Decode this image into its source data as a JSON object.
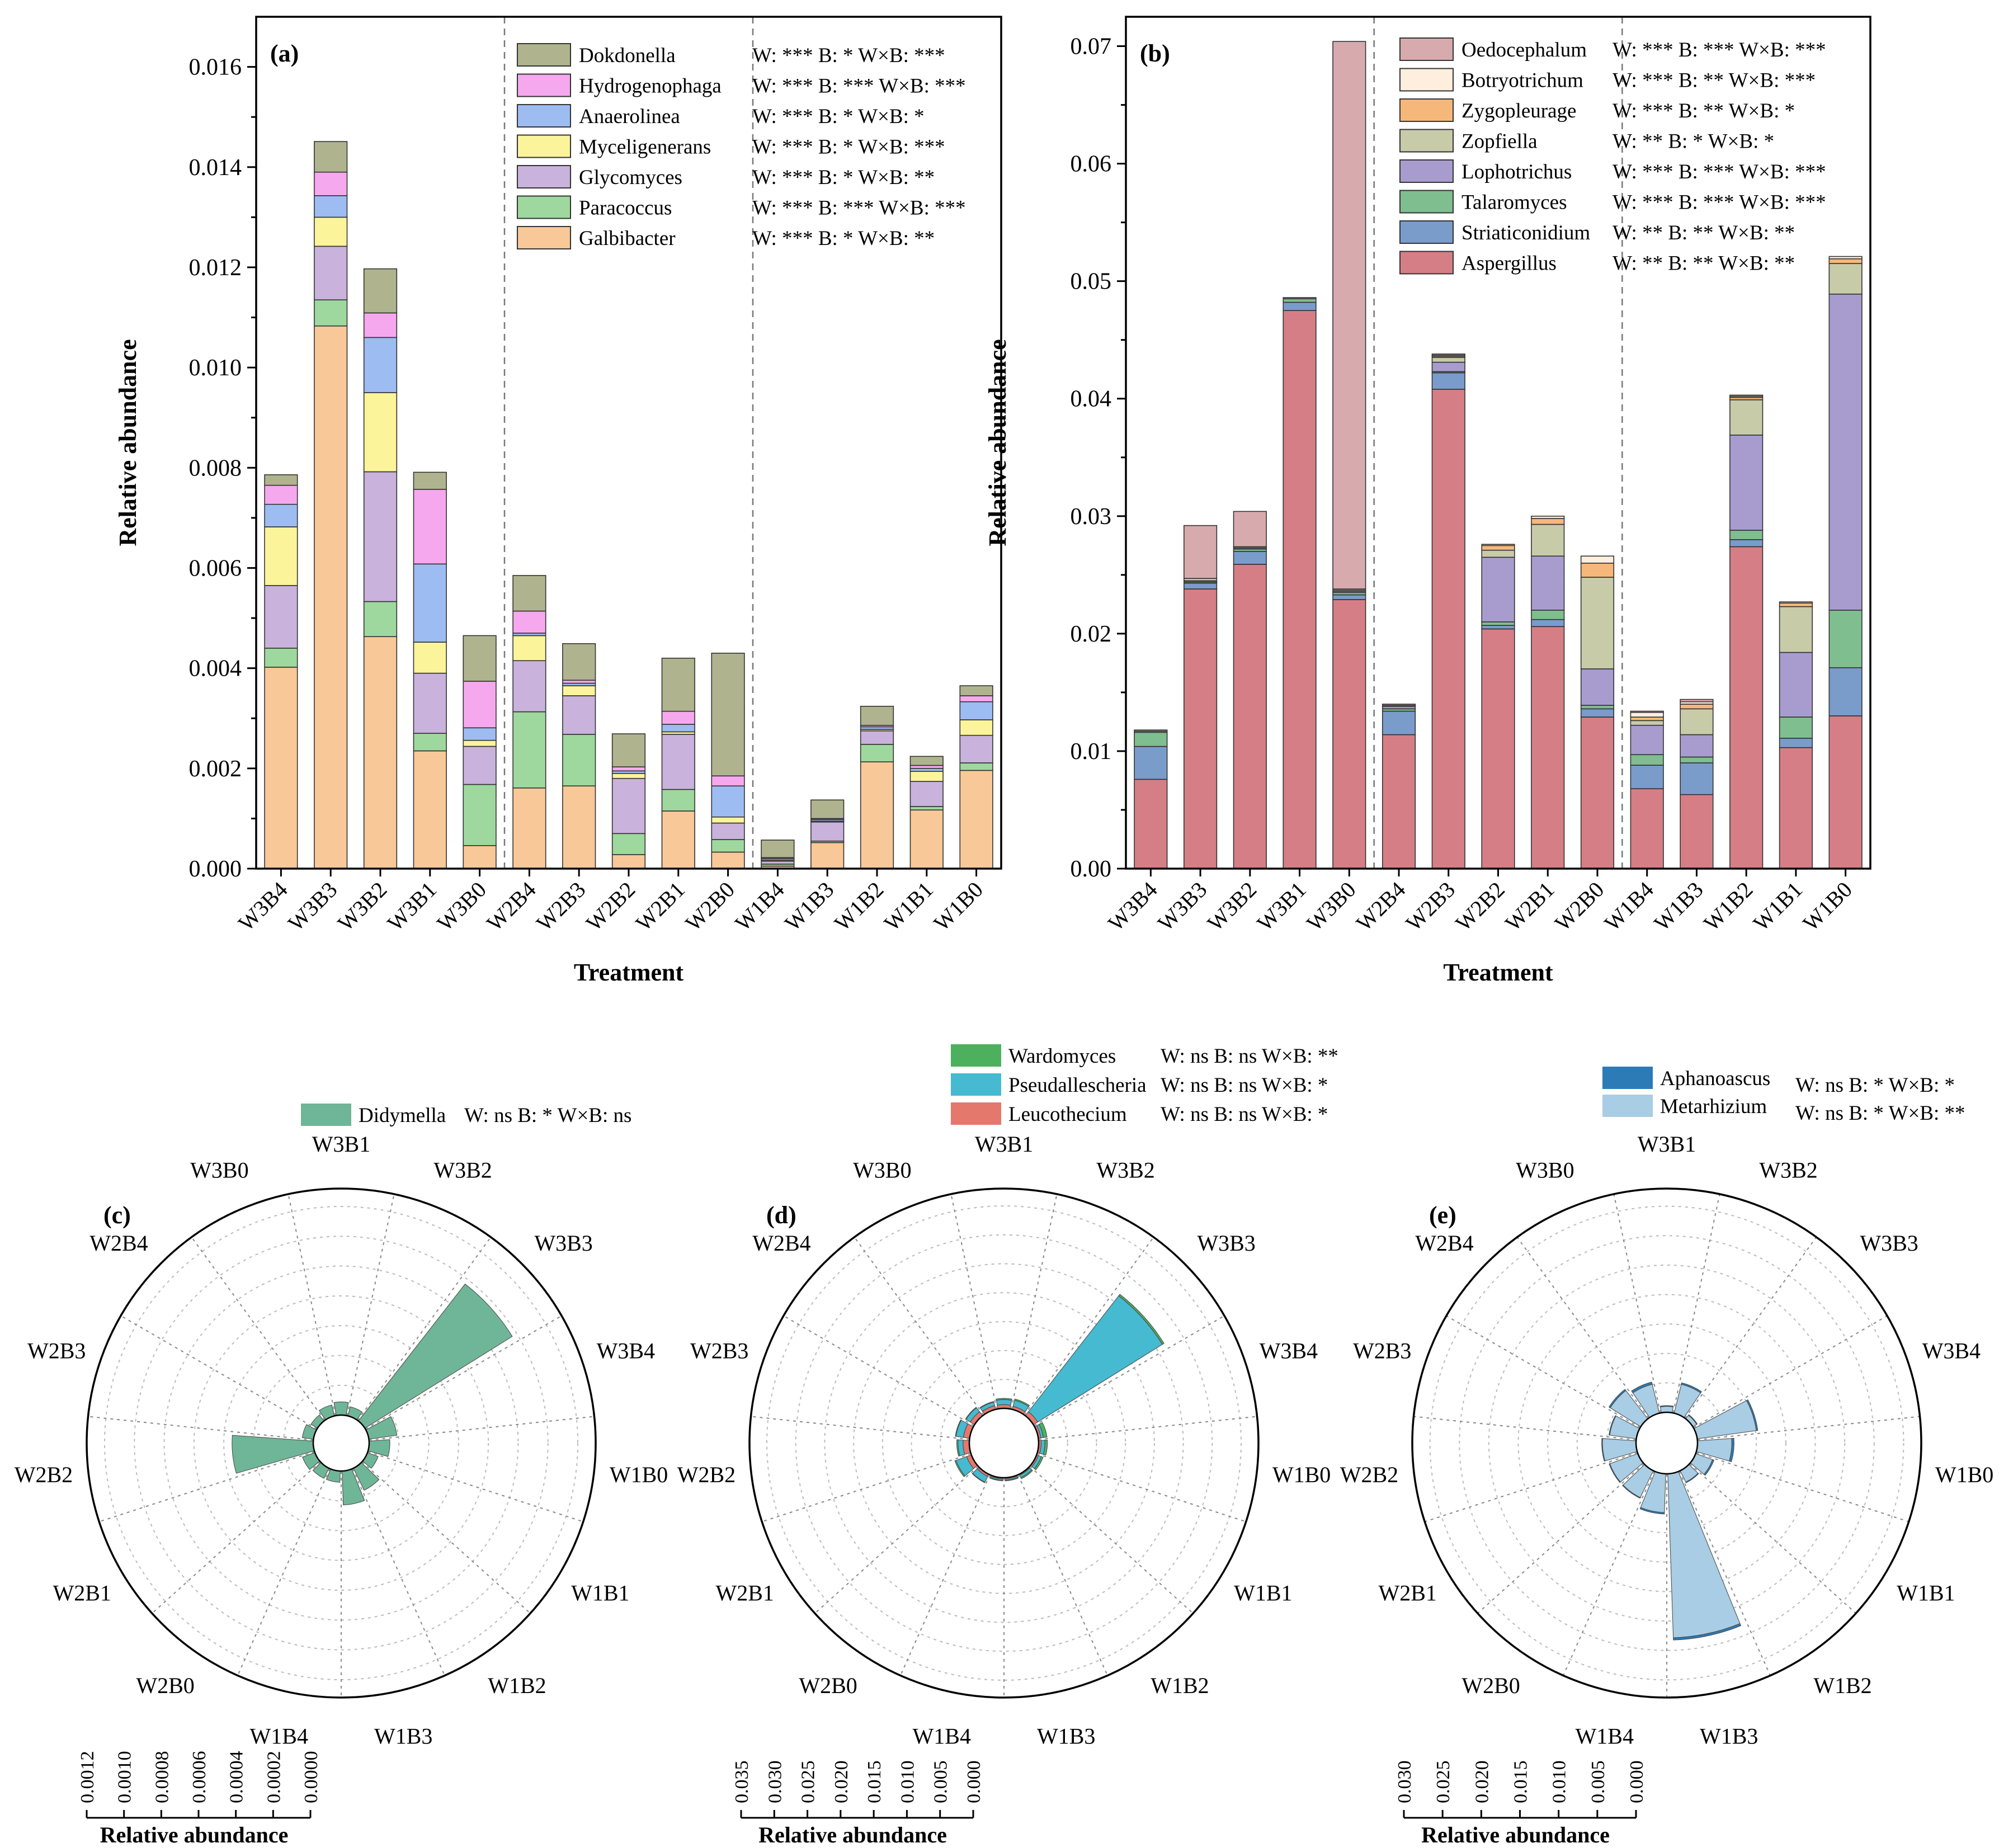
{
  "chart_data": [
    {
      "id": "a",
      "type": "bar",
      "panel_label": "(a)",
      "xlabel": "Treatment",
      "ylabel": "Relative abundance",
      "ylim": [
        0,
        0.017
      ],
      "yticks": [
        "0.000",
        "0.002",
        "0.004",
        "0.006",
        "0.008",
        "0.010",
        "0.012",
        "0.014",
        "0.016"
      ],
      "categories": [
        "W3B4",
        "W3B3",
        "W3B2",
        "W3B1",
        "W3B0",
        "W2B4",
        "W2B3",
        "W2B2",
        "W2B1",
        "W2B0",
        "W1B4",
        "W1B3",
        "W1B2",
        "W1B1",
        "W1B0"
      ],
      "series": [
        {
          "name": "Galbibacter",
          "color": "#F9C898",
          "sig": "W: *** B: *     W×B: **",
          "values": [
            0.00402,
            0.01083,
            0.00463,
            0.00235,
            0.00046,
            0.00161,
            0.00165,
            0.00028,
            0.00115,
            0.00033,
            5e-05,
            0.00052,
            0.00213,
            0.00117,
            0.00196
          ]
        },
        {
          "name": "Paracoccus",
          "color": "#9ED89E",
          "sig": "W: *** B: *** W×B: ***",
          "values": [
            0.00038,
            0.00052,
            0.0007,
            0.00035,
            0.00122,
            0.00152,
            0.00103,
            0.00042,
            0.00043,
            0.00025,
            4e-05,
            3e-05,
            0.00035,
            7e-05,
            0.00015
          ]
        },
        {
          "name": "Glycomyces",
          "color": "#C9B2DC",
          "sig": "W: *** B: *     W×B: **",
          "values": [
            0.00125,
            0.00107,
            0.00259,
            0.0012,
            0.00076,
            0.00102,
            0.00077,
            0.0011,
            0.0011,
            0.00033,
            6e-05,
            0.00038,
            0.00027,
            0.0005,
            0.00055
          ]
        },
        {
          "name": "Myceligenerans",
          "color": "#FBF49A",
          "sig": "W: *** B: *     W×B: ***",
          "values": [
            0.00117,
            0.00058,
            0.00158,
            0.00062,
            0.00012,
            0.0005,
            0.0002,
            0.0001,
            5e-05,
            0.00012,
            2e-05,
            2e-05,
            3e-05,
            0.0002,
            0.00031
          ]
        },
        {
          "name": "Anaerolinea",
          "color": "#9DBDF2",
          "sig": "W: *** B: *     W×B: *",
          "values": [
            0.00045,
            0.00043,
            0.0011,
            0.00156,
            0.00025,
            5e-05,
            5e-05,
            5e-05,
            0.00015,
            0.00062,
            3e-05,
            3e-05,
            5e-05,
            6e-05,
            0.00036
          ]
        },
        {
          "name": "Hydrogenophaga",
          "color": "#F6A8EE",
          "sig": "W: *** B: *** W×B: ***",
          "values": [
            0.00038,
            0.00047,
            0.00049,
            0.00149,
            0.00093,
            0.00044,
            6e-05,
            8e-05,
            0.00026,
            0.0002,
            2e-05,
            2e-05,
            3e-05,
            6e-05,
            0.00012
          ]
        },
        {
          "name": "Dokdonella",
          "color": "#B0B48E",
          "sig": "W: *** B: *     W×B: ***",
          "values": [
            0.00021,
            0.00061,
            0.00088,
            0.00034,
            0.00091,
            0.00071,
            0.00073,
            0.00066,
            0.00106,
            0.00245,
            0.00035,
            0.00037,
            0.00038,
            0.00018,
            0.0002
          ]
        }
      ]
    },
    {
      "id": "b",
      "type": "bar",
      "panel_label": "(b)",
      "xlabel": "Treatment",
      "ylabel": "Relative abundance",
      "ylim": [
        0,
        0.0725
      ],
      "yticks": [
        "0.00",
        "0.01",
        "0.02",
        "0.03",
        "0.04",
        "0.05",
        "0.06",
        "0.07"
      ],
      "categories": [
        "W3B4",
        "W3B3",
        "W3B2",
        "W3B1",
        "W3B0",
        "W2B4",
        "W2B3",
        "W2B2",
        "W2B1",
        "W2B0",
        "W1B4",
        "W1B3",
        "W1B2",
        "W1B1",
        "W1B0"
      ],
      "series": [
        {
          "name": "Aspergillus",
          "color": "#D67E86",
          "sig": "W: **    B: **    W×B: **",
          "values": [
            0.0076,
            0.0238,
            0.0259,
            0.0475,
            0.0229,
            0.0114,
            0.0408,
            0.0204,
            0.0206,
            0.0129,
            0.0068,
            0.0063,
            0.0274,
            0.0103,
            0.013
          ]
        },
        {
          "name": "Striaticonidium",
          "color": "#7A9CCB",
          "sig": "W: **    B: **    W×B: **",
          "values": [
            0.0028,
            0.0005,
            0.0011,
            0.0007,
            0.0004,
            0.002,
            0.0014,
            0.0003,
            0.0006,
            0.0007,
            0.002,
            0.0027,
            0.0006,
            0.0008,
            0.0041
          ]
        },
        {
          "name": "Talaromyces",
          "color": "#7FBE8E",
          "sig": "W: *** B: *** W×B: ***",
          "values": [
            0.0012,
            0.0001,
            0.0002,
            0.0003,
            0.0002,
            0.0002,
            0.0001,
            0.0003,
            0.0008,
            0.0003,
            0.0009,
            0.0005,
            0.0008,
            0.0018,
            0.0049
          ]
        },
        {
          "name": "Lophotrichus",
          "color": "#A89CCF",
          "sig": "W: *** B: *** W×B: ***",
          "values": [
            0.0001,
            0.0001,
            0.0001,
            0.0001,
            0.0001,
            0.0002,
            0.0008,
            0.0055,
            0.0046,
            0.0031,
            0.0025,
            0.0019,
            0.0081,
            0.0055,
            0.0269
          ]
        },
        {
          "name": "Zopfiella",
          "color": "#C8CBA8",
          "sig": "W: **    B: *     W×B: *",
          "values": [
            0.0001,
            0.0002,
            0.0001,
            0.0,
            0.0001,
            0.0001,
            0.0004,
            0.0006,
            0.0027,
            0.0078,
            0.0004,
            0.0022,
            0.003,
            0.0039,
            0.0026
          ]
        },
        {
          "name": "Zygopleurage",
          "color": "#F6B87A",
          "sig": "W: *** B: **    W×B: *",
          "values": [
            0.0,
            0.0,
            0.0,
            0.0,
            0.0,
            0.0,
            0.0001,
            0.0004,
            0.0005,
            0.0012,
            0.0003,
            0.0004,
            0.0002,
            0.0003,
            0.0004
          ]
        },
        {
          "name": "Botryotrichum",
          "color": "#FEEEDD",
          "sig": "W: *** B: **    W×B: ***",
          "values": [
            0.0,
            0.0,
            0.0,
            0.0,
            0.0001,
            0.0,
            0.0001,
            0.0001,
            0.0002,
            0.0006,
            0.0004,
            0.0002,
            0.0001,
            0.0001,
            0.0002
          ]
        },
        {
          "name": "Oedocephalum",
          "color": "#D7ABAE",
          "sig": "W: *** B: *** W×B: ***",
          "values": [
            0.0,
            0.0045,
            0.003,
            0.0,
            0.0466,
            0.0001,
            0.0001,
            0.0,
            0.0,
            0.0,
            0.0001,
            0.0002,
            0.0001,
            0.0,
            0.0
          ]
        }
      ]
    },
    {
      "id": "c",
      "type": "polar-bar",
      "panel_label": "(c)",
      "axis_title": "Relative abundance",
      "rmax": 0.0012,
      "hole": 0.00025,
      "rticks": [
        "0.0000",
        "0.0002",
        "0.0004",
        "0.0006",
        "0.0008",
        "0.0010",
        "0.0012"
      ],
      "rtick_values": [
        0,
        0.0002,
        0.0004,
        0.0006,
        0.0008,
        0.001,
        0.0012
      ],
      "categories": [
        "W3B1",
        "W3B2",
        "W3B3",
        "W3B4",
        "W1B0",
        "W1B1",
        "W1B2",
        "W1B3",
        "W1B4",
        "W2B0",
        "W2B1",
        "W2B2",
        "W2B3",
        "W2B4",
        "W3B0"
      ],
      "series": [
        {
          "name": "Didymella",
          "color": "#6FB597",
          "sig": "W: ns B: * W×B: ns",
          "values": [
            7e-05,
            5e-05,
            0.00092,
            0.00015,
            0.00011,
            6e-05,
            0.00013,
            0.00018,
            6e-05,
            6e-05,
            7e-05,
            0.00043,
            6e-05,
            4e-05,
            6e-05
          ]
        }
      ]
    },
    {
      "id": "d",
      "type": "polar-bar",
      "panel_label": "(d)",
      "axis_title": "Relative abundance",
      "rmax": 0.035,
      "hole": 0.0045,
      "rticks": [
        "0.000",
        "0.005",
        "0.010",
        "0.015",
        "0.020",
        "0.025",
        "0.030",
        "0.035"
      ],
      "rtick_values": [
        0,
        0.005,
        0.01,
        0.015,
        0.02,
        0.025,
        0.03,
        0.035
      ],
      "categories": [
        "W3B1",
        "W3B2",
        "W3B3",
        "W3B4",
        "W1B0",
        "W1B1",
        "W1B2",
        "W1B3",
        "W1B4",
        "W2B0",
        "W2B1",
        "W2B2",
        "W2B3",
        "W2B4",
        "W3B0"
      ],
      "series": [
        {
          "name": "Leucothecium",
          "color": "#E4786C",
          "sig": "W: ns B: ns W×B: *",
          "values": [
            0.0006,
            0.0005,
            0.0008,
            0.0004,
            0.0004,
            0.0003,
            0.0002,
            0.0002,
            0.0002,
            0.0004,
            0.0008,
            0.001,
            0.001,
            0.0008,
            0.0006
          ]
        },
        {
          "name": "Pseudallescheria",
          "color": "#45BAD0",
          "sig": "W: ns B: ns W×B: *",
          "values": [
            0.0008,
            0.001,
            0.0234,
            0.0004,
            0.0006,
            0.0005,
            0.0004,
            0.0002,
            0.0002,
            0.001,
            0.0018,
            0.0008,
            0.0012,
            0.0008,
            0.0006
          ]
        },
        {
          "name": "Wardomyces",
          "color": "#4DB05E",
          "sig": "W: ns B: ns W×B: **",
          "values": [
            0.0002,
            0.0002,
            0.0003,
            0.0006,
            0.0004,
            0.0003,
            0.0002,
            0.0001,
            0.0001,
            0.0001,
            0.0002,
            0.0002,
            0.0001,
            0.0001,
            0.0001
          ]
        }
      ]
    },
    {
      "id": "e",
      "type": "polar-bar",
      "panel_label": "(e)",
      "axis_title": "Relative abundance",
      "rmax": 0.03,
      "hole": 0.0035,
      "rticks": [
        "0.000",
        "0.005",
        "0.010",
        "0.015",
        "0.020",
        "0.025",
        "0.030"
      ],
      "rtick_values": [
        0,
        0.005,
        0.01,
        0.015,
        0.02,
        0.025,
        0.03
      ],
      "categories": [
        "W3B1",
        "W3B2",
        "W3B3",
        "W3B4",
        "W1B0",
        "W1B1",
        "W1B2",
        "W1B3",
        "W1B4",
        "W2B0",
        "W2B1",
        "W2B2",
        "W2B3",
        "W2B4",
        "W3B0"
      ],
      "series": [
        {
          "name": "Metarhizium",
          "color": "#A8CDE4",
          "sig": "W: ns B: * W×B: **",
          "values": [
            0.0008,
            0.004,
            0.0006,
            0.008,
            0.0046,
            0.0024,
            0.0017,
            0.022,
            0.0052,
            0.004,
            0.004,
            0.0045,
            0.0036,
            0.0048,
            0.004
          ]
        },
        {
          "name": "Aphanoascus",
          "color": "#2C7BB6",
          "sig": "W: ns B: * W×B: *",
          "values": [
            0.0001,
            0.0002,
            0.0001,
            0.0002,
            0.0003,
            0.0002,
            0.0001,
            0.0003,
            0.0002,
            0.0001,
            0.0001,
            0.0001,
            0.0001,
            0.0002,
            0.0003
          ]
        }
      ]
    }
  ]
}
